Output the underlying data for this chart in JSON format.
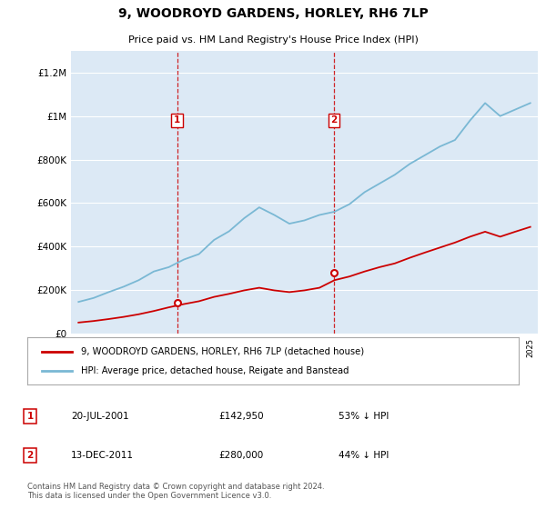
{
  "title": "9, WOODROYD GARDENS, HORLEY, RH6 7LP",
  "subtitle": "Price paid vs. HM Land Registry's House Price Index (HPI)",
  "legend_line1": "9, WOODROYD GARDENS, HORLEY, RH6 7LP (detached house)",
  "legend_line2": "HPI: Average price, detached house, Reigate and Banstead",
  "footer": "Contains HM Land Registry data © Crown copyright and database right 2024.\nThis data is licensed under the Open Government Licence v3.0.",
  "sale1_label": "1",
  "sale1_date": "20-JUL-2001",
  "sale1_price": "£142,950",
  "sale1_hpi": "53% ↓ HPI",
  "sale2_label": "2",
  "sale2_date": "13-DEC-2011",
  "sale2_price": "£280,000",
  "sale2_hpi": "44% ↓ HPI",
  "sale1_x": 2001.55,
  "sale1_y": 142950,
  "sale2_x": 2011.96,
  "sale2_y": 280000,
  "hpi_color": "#7ab8d4",
  "price_color": "#cc0000",
  "vline_color": "#cc0000",
  "plot_bg_color": "#dce9f5",
  "ylim": [
    0,
    1300000
  ],
  "yticks": [
    0,
    200000,
    400000,
    600000,
    800000,
    1000000,
    1200000
  ],
  "ytick_labels": [
    "£0",
    "£200K",
    "£400K",
    "£600K",
    "£800K",
    "£1M",
    "£1.2M"
  ],
  "hpi_x": [
    1995,
    1996,
    1997,
    1998,
    1999,
    2000,
    2001,
    2002,
    2003,
    2004,
    2005,
    2006,
    2007,
    2008,
    2009,
    2010,
    2011,
    2012,
    2013,
    2014,
    2015,
    2016,
    2017,
    2018,
    2019,
    2020,
    2021,
    2022,
    2023,
    2024,
    2025
  ],
  "hpi_y": [
    145000,
    163000,
    190000,
    215000,
    245000,
    285000,
    305000,
    340000,
    365000,
    430000,
    470000,
    530000,
    580000,
    545000,
    505000,
    520000,
    545000,
    560000,
    595000,
    650000,
    690000,
    730000,
    780000,
    820000,
    860000,
    890000,
    980000,
    1060000,
    1000000,
    1030000,
    1060000
  ],
  "price_x": [
    1995,
    1996,
    1997,
    1998,
    1999,
    2000,
    2001,
    2002,
    2003,
    2004,
    2005,
    2006,
    2007,
    2008,
    2009,
    2010,
    2011,
    2012,
    2013,
    2014,
    2015,
    2016,
    2017,
    2018,
    2019,
    2020,
    2021,
    2022,
    2023,
    2024,
    2025
  ],
  "price_y": [
    50000,
    57000,
    66000,
    76000,
    88000,
    103000,
    120000,
    135000,
    148000,
    168000,
    182000,
    198000,
    210000,
    198000,
    190000,
    198000,
    210000,
    245000,
    262000,
    285000,
    305000,
    322000,
    348000,
    372000,
    395000,
    418000,
    445000,
    468000,
    445000,
    468000,
    490000
  ],
  "xlim_min": 1994.5,
  "xlim_max": 2025.5
}
